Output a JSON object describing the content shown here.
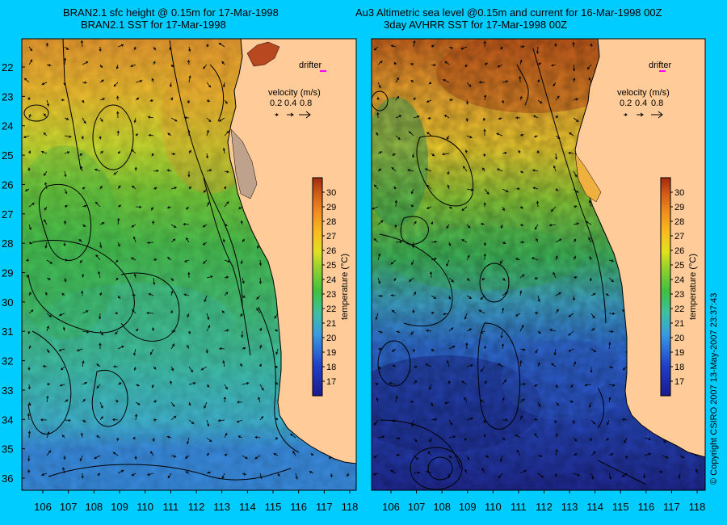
{
  "left_panel": {
    "title_line1": "BRAN2.1 sfc height @ 0.15m for 17-Mar-1998",
    "title_line2": "BRAN2.1 SST for 17-Mar-1998"
  },
  "right_panel": {
    "title_line1": "Au3 Altimetric sea level  @0.15m and current for 16-Mar-1998 00Z",
    "title_line2": "3day AVHRR SST for 17-Mar-1998 00Z"
  },
  "legend": {
    "drifter_label": "drifter",
    "velocity_label": "velocity (m/s)",
    "velocity_scale": [
      "0.2",
      "0.4",
      "0.8"
    ],
    "drifter_color": "#ff00ff"
  },
  "colorbar": {
    "label": "temperature (°C)",
    "min": 16,
    "max": 31,
    "ticks": [
      "17",
      "18",
      "19",
      "20",
      "21",
      "22",
      "23",
      "24",
      "25",
      "26",
      "27",
      "28",
      "29",
      "30"
    ]
  },
  "axes": {
    "lon_ticks": [
      "106",
      "107",
      "108",
      "109",
      "110",
      "111",
      "112",
      "113",
      "114",
      "115",
      "116",
      "117",
      "118"
    ],
    "lat_ticks": [
      "22",
      "23",
      "24",
      "25",
      "26",
      "27",
      "28",
      "29",
      "30",
      "31",
      "32",
      "33",
      "34",
      "35",
      "36"
    ]
  },
  "land_color": "#ffcc99",
  "copyright": "© Copyright CSIRO 2007  13-May-2007 23:37:43"
}
